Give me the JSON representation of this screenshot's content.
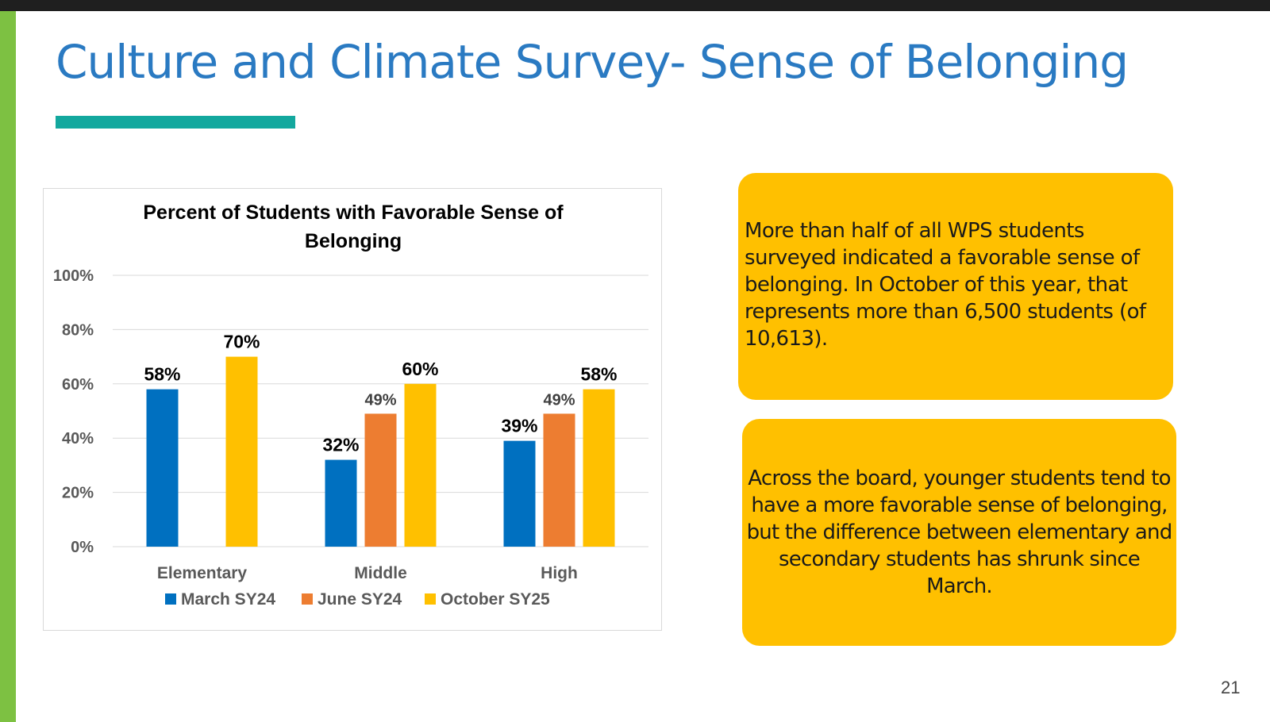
{
  "slide": {
    "title": "Culture and Climate Survey- Sense of Belonging",
    "page_number": "21",
    "callout_1": "More than half of all WPS students surveyed indicated a favorable sense of belonging. In October of this year, that represents more than 6,500 students (of 10,613).",
    "callout_2": "Across the board, younger students tend to have a more favorable sense of belonging, but the difference between elementary and secondary students has shrunk since March."
  },
  "colors": {
    "title": "#2a7ac2",
    "accent_underline": "#13a89e",
    "left_bar": "#7dc142",
    "callout": "#ffc000"
  },
  "chart_data": {
    "type": "bar",
    "title": "Percent of Students with Favorable Sense of Belonging",
    "xlabel": "",
    "ylabel": "",
    "ylim": [
      0,
      100
    ],
    "yticks": [
      "0%",
      "20%",
      "40%",
      "60%",
      "80%",
      "100%"
    ],
    "grid": true,
    "legend_position": "bottom",
    "categories": [
      "Elementary",
      "Middle",
      "High"
    ],
    "series": [
      {
        "name": "March SY24",
        "color": "#0070c0",
        "values": [
          58,
          32,
          39
        ],
        "labels": [
          "58%",
          "32%",
          "39%"
        ]
      },
      {
        "name": "June SY24",
        "color": "#ed7d31",
        "values": [
          null,
          49,
          49
        ],
        "labels": [
          "",
          "49%",
          "49%"
        ]
      },
      {
        "name": "October SY25",
        "color": "#ffc000",
        "values": [
          70,
          60,
          58
        ],
        "labels": [
          "70%",
          "60%",
          "58%"
        ]
      }
    ]
  }
}
